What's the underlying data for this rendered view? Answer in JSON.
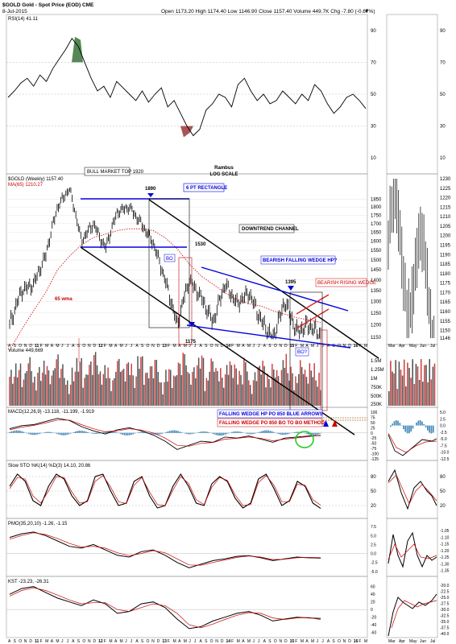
{
  "header": {
    "symbol_line": "$GOLD Gold - Spot Price (EOD) CME",
    "date": "8-Jul-2015",
    "stats_line": "Open 1173.20  High 1174.40  Low 1146.90  Close 1157.40  Volume 449.7K  Chg -7.80 (-0.67%)",
    "stats_arrow": "▼"
  },
  "colors": {
    "price": "#000000",
    "ma": "#cc0000",
    "trend_blue": "#0000dd",
    "trend_black": "#000000",
    "vol_up": "#555555",
    "vol_down": "#cc4444",
    "macd_hist": "#4488bb",
    "highlight_green": "#22cc22",
    "rsi_fill_up": "#558855",
    "rsi_fill_down": "#aa5555"
  },
  "chart_data": [
    {
      "type": "line",
      "title": "RSI(14) 41.11",
      "ylim": [
        0,
        100
      ],
      "y_ticks": [
        10,
        30,
        50,
        70,
        90
      ],
      "series": [
        {
          "name": "RSI(14)",
          "values": [
            48,
            52,
            57,
            60,
            55,
            62,
            58,
            66,
            72,
            78,
            85,
            80,
            70,
            60,
            52,
            55,
            48,
            58,
            54,
            50,
            46,
            52,
            45,
            50,
            54,
            42,
            46,
            38,
            30,
            24,
            28,
            40,
            44,
            50,
            48,
            42,
            56,
            60,
            52,
            46,
            50,
            44,
            46,
            52,
            48,
            44,
            50,
            46,
            56,
            52,
            44,
            38,
            42,
            48,
            50,
            46,
            41
          ]
        }
      ]
    },
    {
      "type": "line",
      "title": "$GOLD (Weekly) 1157.40",
      "subtitle": "MA(65) 1210.27",
      "scale": "log",
      "ylim": [
        1140,
        1930
      ],
      "y_ticks": [
        1150,
        1200,
        1250,
        1300,
        1350,
        1400,
        1450,
        1500,
        1550,
        1600,
        1650,
        1700,
        1750,
        1800,
        1850
      ],
      "x_ticks": [
        "A",
        "S",
        "O",
        "N",
        "D",
        "11",
        "F",
        "M",
        "A",
        "M",
        "J",
        "J",
        "A",
        "S",
        "O",
        "N",
        "D",
        "12",
        "F",
        "M",
        "A",
        "M",
        "J",
        "J",
        "A",
        "S",
        "O",
        "N",
        "D",
        "13",
        "F",
        "M",
        "A",
        "M",
        "J",
        "J",
        "A",
        "S",
        "O",
        "N",
        "D",
        "14",
        "F",
        "M",
        "A",
        "M",
        "J",
        "J",
        "A",
        "S",
        "O",
        "N",
        "D",
        "15",
        "F",
        "M",
        "A",
        "M",
        "J",
        "J",
        "A",
        "S",
        "O",
        "N",
        "D",
        "16",
        "F",
        "M"
      ],
      "dates": [
        "2010-08",
        "2010-11",
        "2011-02",
        "2011-05",
        "2011-08",
        "2011-09",
        "2011-12",
        "2012-03",
        "2012-06",
        "2012-09",
        "2012-10",
        "2012-12",
        "2013-03",
        "2013-04",
        "2013-06",
        "2013-08",
        "2013-10",
        "2013-12",
        "2014-03",
        "2014-05",
        "2014-07",
        "2014-09",
        "2014-11",
        "2015-01",
        "2015-03",
        "2015-05",
        "2015-07"
      ],
      "series": [
        {
          "name": "$GOLD",
          "values": [
            1200,
            1350,
            1380,
            1520,
            1800,
            1920,
            1600,
            1700,
            1560,
            1770,
            1800,
            1700,
            1590,
            1400,
            1200,
            1400,
            1320,
            1210,
            1380,
            1290,
            1340,
            1220,
            1140,
            1300,
            1170,
            1200,
            1157
          ]
        },
        {
          "name": "MA(65)",
          "values": [
            1100,
            1180,
            1260,
            1340,
            1450,
            1520,
            1580,
            1620,
            1640,
            1660,
            1670,
            1670,
            1660,
            1620,
            1560,
            1480,
            1420,
            1380,
            1340,
            1310,
            1290,
            1280,
            1260,
            1245,
            1230,
            1220,
            1210
          ]
        }
      ]
    },
    {
      "type": "bar",
      "title": "Volume 449,669",
      "y_ticks": [
        "250K",
        "500K",
        "750K",
        "1M",
        "1.25M",
        "1.5M"
      ],
      "values": [
        0.9,
        1.1,
        0.8,
        1.3,
        0.7,
        1.0,
        1.2,
        0.9,
        1.4,
        1.1,
        0.6,
        1.0,
        1.3,
        0.8,
        1.2,
        1.5,
        0.9,
        1.1,
        0.7,
        1.3,
        1.0,
        1.2,
        0.8,
        1.4,
        0.9,
        1.1,
        1.3,
        0.6,
        1.0,
        0.8,
        1.2,
        1.5,
        0.9,
        1.1,
        1.4,
        0.7,
        1.3,
        1.0,
        0.8,
        1.2,
        1.1,
        0.9,
        1.3,
        0.6,
        1.0,
        1.2,
        0.8,
        1.1,
        0.9,
        1.4,
        1.0,
        0.7,
        1.2,
        0.9,
        1.1,
        0.8,
        0.5
      ]
    },
    {
      "type": "line",
      "title": "MACD(12,26,9) -13.118, -11.199, -1.919",
      "y_ticks": [
        -125,
        -100,
        -75,
        -50,
        -25,
        0,
        25,
        50,
        75,
        100
      ],
      "series": [
        {
          "name": "MACD",
          "values": [
            20,
            35,
            40,
            55,
            70,
            60,
            30,
            10,
            -5,
            15,
            25,
            10,
            -10,
            -40,
            -80,
            -60,
            -40,
            -45,
            -20,
            -25,
            -15,
            -30,
            -45,
            -25,
            -20,
            -15,
            -13
          ]
        },
        {
          "name": "Signal",
          "values": [
            15,
            28,
            36,
            48,
            62,
            62,
            40,
            20,
            5,
            10,
            20,
            14,
            0,
            -25,
            -60,
            -64,
            -50,
            -46,
            -30,
            -26,
            -20,
            -26,
            -38,
            -30,
            -24,
            -18,
            -11
          ]
        }
      ]
    },
    {
      "type": "line",
      "title": "Slow STO %K(14) %D(3) 14.10, 20.86",
      "y_ticks": [
        20,
        50,
        80
      ],
      "series": [
        {
          "name": "%K",
          "values": [
            60,
            85,
            70,
            30,
            20,
            60,
            85,
            75,
            40,
            20,
            30,
            80,
            85,
            50,
            20,
            25,
            70,
            80,
            40,
            15,
            20,
            60,
            85,
            60,
            25,
            20,
            65,
            80,
            70,
            35,
            15,
            25,
            75,
            85,
            55,
            20,
            30,
            70,
            60,
            25,
            14
          ]
        },
        {
          "name": "%D",
          "values": [
            55,
            78,
            75,
            40,
            25,
            50,
            80,
            78,
            48,
            25,
            28,
            70,
            82,
            58,
            28,
            24,
            62,
            78,
            48,
            22,
            20,
            52,
            80,
            66,
            32,
            22,
            58,
            78,
            72,
            42,
            20,
            22,
            68,
            82,
            62,
            28,
            28,
            64,
            62,
            32,
            20.86
          ]
        }
      ]
    },
    {
      "type": "line",
      "title": "PMO(35,20,10) -1.26, -1.15",
      "y_ticks": [
        -5.0,
        -2.5,
        0.0,
        2.5,
        5.0,
        7.5
      ],
      "series": [
        {
          "name": "PMO",
          "values": [
            4.5,
            5.5,
            6.0,
            5.0,
            3.5,
            2.0,
            1.5,
            2.5,
            1.0,
            -0.5,
            -1.0,
            0.5,
            1.0,
            -0.5,
            -2.5,
            -4.0,
            -3.0,
            -2.0,
            -1.5,
            -0.8,
            -0.6,
            -1.2,
            -2.0,
            -1.5,
            -1.0,
            -1.2,
            -1.26
          ]
        },
        {
          "name": "Signal",
          "values": [
            4.0,
            5.0,
            5.8,
            5.3,
            4.2,
            2.8,
            1.8,
            2.0,
            1.5,
            0.2,
            -0.6,
            0.0,
            0.8,
            0.2,
            -1.5,
            -3.2,
            -3.3,
            -2.5,
            -1.8,
            -1.1,
            -0.7,
            -1.0,
            -1.7,
            -1.6,
            -1.2,
            -1.1,
            -1.15
          ]
        }
      ]
    },
    {
      "type": "line",
      "title": "KST -23.23, -26.31",
      "y_ticks": [
        -60,
        -40,
        -20,
        0,
        20,
        40,
        60
      ],
      "series": [
        {
          "name": "KST",
          "values": [
            40,
            55,
            60,
            45,
            30,
            20,
            10,
            25,
            15,
            -10,
            -5,
            15,
            20,
            5,
            -25,
            -50,
            -45,
            -30,
            -20,
            -10,
            -5,
            -15,
            -30,
            -25,
            -20,
            -22,
            -23.23
          ]
        },
        {
          "name": "Signal",
          "values": [
            35,
            50,
            57,
            50,
            38,
            25,
            15,
            18,
            18,
            0,
            -5,
            5,
            15,
            10,
            -10,
            -40,
            -48,
            -38,
            -26,
            -15,
            -8,
            -10,
            -22,
            -26,
            -22,
            -21,
            -26.31
          ]
        }
      ]
    },
    {
      "type": "scatter",
      "title": "",
      "y_ticks": [
        1145,
        1150,
        1160,
        1170,
        1180,
        1190,
        1200,
        1210,
        1220,
        1230
      ],
      "x_ticks": [
        "Mar",
        "Apr",
        "May",
        "Jun",
        "Jul"
      ]
    }
  ],
  "right_axes": {
    "rsi": [
      "90",
      "70",
      "50",
      "30",
      "10"
    ],
    "price": [
      "1850",
      "1800",
      "1750",
      "1700",
      "1650",
      "1600",
      "1550",
      "1500",
      "1450",
      "1400",
      "1350",
      "1300",
      "1250",
      "1200",
      "1150"
    ],
    "daily_price": [
      "1230",
      "1225",
      "1220",
      "1215",
      "1210",
      "1205",
      "1200",
      "1195",
      "1190",
      "1185",
      "1180",
      "1175",
      "1170",
      "1165",
      "1160",
      "1155",
      "1150",
      "1146"
    ],
    "volume": [
      "1.5M",
      "1.25M",
      "1M",
      "750K",
      "500K",
      "250K"
    ],
    "macd": [
      "100",
      "75",
      "50",
      "25",
      "0",
      "-25",
      "-50",
      "-75",
      "-100",
      "-125"
    ],
    "daily_macd": [
      "5.0",
      "2.5",
      "0.0",
      "-2.5",
      "-5.0",
      "-7.5",
      "-10.0",
      "-12.5"
    ],
    "sto": [
      "80",
      "50",
      "20"
    ],
    "pmo": [
      "7.5",
      "5.0",
      "2.5",
      "0.0",
      "-2.5",
      "-5.0"
    ],
    "daily_pmo": [
      "-1.05",
      "-1.10",
      "-1.15",
      "-1.20",
      "-1.25",
      "-1.30",
      "-1.35"
    ],
    "kst": [
      "60",
      "40",
      "20",
      "0",
      "-20",
      "-40",
      "-60"
    ],
    "daily_kst": [
      "-20.0",
      "-22.5",
      "-25.0",
      "-27.5",
      "-30.0",
      "-32.5",
      "-35.0",
      "-37.5",
      "-40.0"
    ]
  },
  "annotations": {
    "bull_top": "BULL MARKET TOP 1920",
    "rambus": "Rambus",
    "log_scale": "LOG SCALE",
    "p1890": "1890",
    "rect": "6 PT RECTANGLE",
    "downtrend": "DOWNTREND CHANNEL",
    "p1530": "1530",
    "bo": "BO",
    "bearish_fw": "BEARISH FALLING WEDGE HP?",
    "p1395": "1395",
    "bearish_rw": "BEARISH RISING WEDGE",
    "wma": "65 wma",
    "p1175": "1175",
    "bo_q": "BO?",
    "fw_blue": "FALLING WEDGE HP PO 850 BLUE ARROWS",
    "fw_red": "FALLING WEDGE PO 850 BO TO BO METHOD"
  },
  "panel_titles": {
    "gold_title": "$GOLD (Weekly) 1157.40",
    "ma_title": "MA(65) 1210.27",
    "volume_title": "Volume 449,669",
    "macd_title": "MACD(12,26,9) -13.118, -11.199, -1.919",
    "sto_title": "Slow STO %K(14) %D(3) 14.10, 20.86",
    "pmo_title": "PMO(35,20,10) -1.26, -1.15",
    "kst_title": "KST -23.23, -26.31",
    "rsi_title": "RSI(14) 41.11"
  },
  "x_axis_weekly": [
    "A",
    "S",
    "O",
    "N",
    "D",
    "11",
    "F",
    "M",
    "A",
    "M",
    "J",
    "J",
    "A",
    "S",
    "O",
    "N",
    "D",
    "12",
    "F",
    "M",
    "A",
    "M",
    "J",
    "J",
    "A",
    "S",
    "O",
    "N",
    "D",
    "13",
    "F",
    "M",
    "A",
    "M",
    "J",
    "J",
    "A",
    "S",
    "O",
    "N",
    "D",
    "14",
    "F",
    "M",
    "A",
    "M",
    "J",
    "J",
    "A",
    "S",
    "O",
    "N",
    "D",
    "15",
    "F",
    "M",
    "A",
    "M",
    "J",
    "J",
    "A",
    "S",
    "O",
    "N",
    "D",
    "16",
    "F",
    "M"
  ],
  "x_axis_daily": [
    "Mar",
    "Apr",
    "May",
    "Jun",
    "Jul"
  ]
}
